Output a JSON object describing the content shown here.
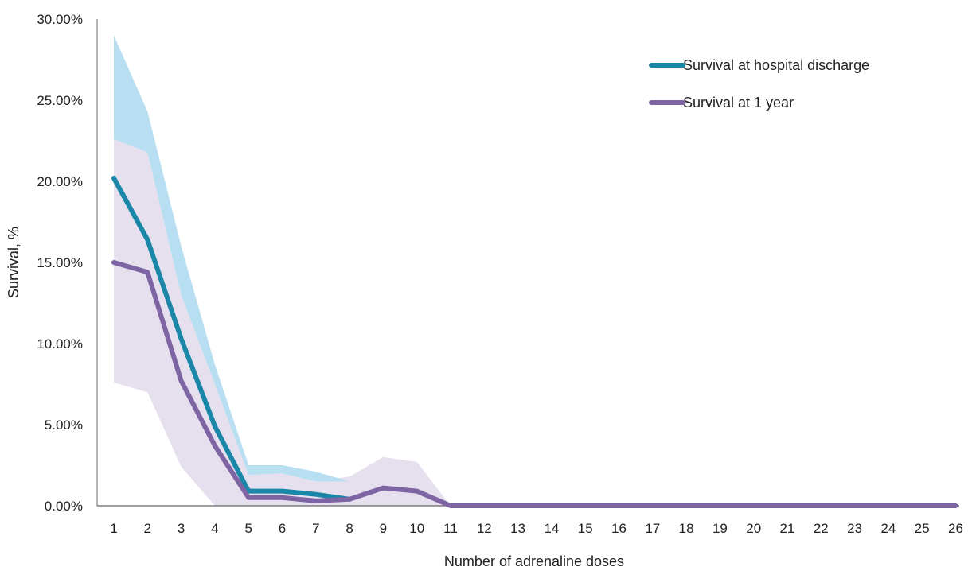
{
  "chart_data": {
    "type": "line",
    "xlabel": "Number of adrenaline doses",
    "ylabel": "Survival, %",
    "x": [
      1,
      2,
      3,
      4,
      5,
      6,
      7,
      8,
      9,
      10,
      11,
      12,
      13,
      14,
      15,
      16,
      17,
      18,
      19,
      20,
      21,
      22,
      23,
      24,
      25,
      26
    ],
    "ylim": [
      0,
      0.3
    ],
    "yticks": [
      0,
      0.05,
      0.1,
      0.15,
      0.2,
      0.25,
      0.3
    ],
    "ytick_labels": [
      "0.00%",
      "5.00%",
      "10.00%",
      "15.00%",
      "20.00%",
      "25.00%",
      "30.00%"
    ],
    "grid": false,
    "legend_position": "top-right",
    "series": [
      {
        "name": "Survival at hospital discharge",
        "color": "#1a86a8",
        "band_color": "#b3dcf0",
        "values": [
          0.202,
          0.164,
          0.103,
          0.049,
          0.009,
          0.009,
          0.007,
          0.004,
          null,
          null,
          null,
          null,
          null,
          null,
          null,
          null,
          null,
          null,
          null,
          null,
          null,
          null,
          null,
          null,
          null,
          null
        ],
        "lower": [
          0.226,
          0.218,
          0.13,
          0.075,
          0.019,
          0.02,
          0.015,
          0.015,
          null,
          null,
          null,
          null,
          null,
          null,
          null,
          null,
          null,
          null,
          null,
          null,
          null,
          null,
          null,
          null,
          null,
          null
        ],
        "upper": [
          0.29,
          0.243,
          0.16,
          0.087,
          0.025,
          0.025,
          0.021,
          0.015,
          null,
          null,
          null,
          null,
          null,
          null,
          null,
          null,
          null,
          null,
          null,
          null,
          null,
          null,
          null,
          null,
          null,
          null
        ]
      },
      {
        "name": "Survival at 1 year",
        "color": "#7e64a3",
        "band_color": "#e6e0ee",
        "values": [
          0.15,
          0.144,
          0.077,
          0.037,
          0.005,
          0.005,
          0.003,
          0.004,
          0.011,
          0.009,
          0,
          0,
          0,
          0,
          0,
          0,
          0,
          0,
          0,
          0,
          0,
          0,
          0,
          0,
          0,
          0
        ],
        "lower": [
          0.076,
          0.07,
          0.024,
          0,
          0,
          0,
          0,
          0,
          0,
          0,
          0,
          0,
          0,
          0,
          0,
          0,
          0,
          0,
          0,
          0,
          0,
          0,
          0,
          0,
          0,
          0
        ],
        "upper": [
          0.226,
          0.218,
          0.13,
          0.075,
          0.019,
          0.02,
          0.015,
          0.018,
          0.03,
          0.027,
          0,
          0,
          0,
          0,
          0,
          0,
          0,
          0,
          0,
          0,
          0,
          0,
          0,
          0,
          0,
          0
        ]
      }
    ]
  }
}
